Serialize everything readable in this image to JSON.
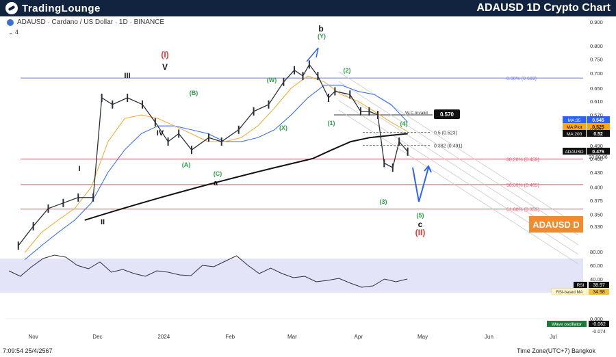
{
  "header": {
    "brand": "TradingLounge",
    "title": "ADAUSD 1D Crypto Chart"
  },
  "symbol": {
    "description": "ADAUSD · Cardano / US Dollar · 1D · BINANCE",
    "indicators_toggle": "⌄ 4"
  },
  "footer": {
    "timestamp": "7:09:54 25/4/2567",
    "timezone": "Time Zone(UTC+7) Bangkok"
  },
  "watermark": "ADAUSD D",
  "colors": {
    "banner": "#12233f",
    "price_line": "#2a2e39",
    "ma35": "#2962ff",
    "ma_plot": "#f5a623",
    "ma200": "#111111",
    "fib": "#e05a6d",
    "top_line": "#6f7fc7",
    "rsi": "#2a2e39",
    "rsi_ma": "#f0c040",
    "wave_up": "#26a69a",
    "wave_down": "#ef5350",
    "arrow": "#2962ff",
    "red_label": "#e53935",
    "green_label": "#2e9e48",
    "watermark": "#f28a2e"
  },
  "chart_data": {
    "type": "line",
    "title": "ADAUSD · Cardano / US Dollar · 1D · BINANCE",
    "x_tick_labels": [
      "Nov",
      "Dec",
      "2024",
      "Feb",
      "Mar",
      "Apr",
      "May",
      "Jun",
      "Jul"
    ],
    "y_tick_labels": [
      "0.900",
      "0.800",
      "0.750",
      "0.700",
      "0.650",
      "0.610",
      "0.570",
      "0.530",
      "0.490",
      "0.460",
      "0.430",
      "0.400",
      "0.375",
      "0.350",
      "0.330"
    ],
    "ylim": [
      0.32,
      0.9
    ],
    "log_scale": true,
    "price_series": {
      "name": "ADAUSD",
      "x": [
        "2023-10-25",
        "2023-11-01",
        "2023-11-08",
        "2023-11-15",
        "2023-11-22",
        "2023-11-29",
        "2023-12-03",
        "2023-12-08",
        "2023-12-15",
        "2023-12-22",
        "2023-12-28",
        "2024-01-03",
        "2024-01-08",
        "2024-01-14",
        "2024-01-22",
        "2024-01-28",
        "2024-02-05",
        "2024-02-12",
        "2024-02-19",
        "2024-02-26",
        "2024-03-02",
        "2024-03-06",
        "2024-03-09",
        "2024-03-13",
        "2024-03-18",
        "2024-03-21",
        "2024-03-28",
        "2024-04-02",
        "2024-04-06",
        "2024-04-10",
        "2024-04-13",
        "2024-04-17",
        "2024-04-20",
        "2024-04-24"
      ],
      "close": [
        0.3,
        0.33,
        0.36,
        0.37,
        0.38,
        0.38,
        0.62,
        0.6,
        0.62,
        0.6,
        0.55,
        0.5,
        0.52,
        0.48,
        0.51,
        0.5,
        0.53,
        0.58,
        0.6,
        0.67,
        0.71,
        0.69,
        0.73,
        0.69,
        0.62,
        0.64,
        0.63,
        0.58,
        0.58,
        0.57,
        0.45,
        0.44,
        0.5,
        0.476
      ]
    },
    "moving_averages": [
      {
        "name": "MA:35",
        "value": 0.545,
        "points": [
          0.28,
          0.3,
          0.32,
          0.34,
          0.37,
          0.43,
          0.48,
          0.52,
          0.54,
          0.54,
          0.53,
          0.52,
          0.5,
          0.5,
          0.51,
          0.53,
          0.57,
          0.62,
          0.66,
          0.66,
          0.64,
          0.63,
          0.6,
          0.55
        ]
      },
      {
        "name": "MA:Plot",
        "value": 0.525,
        "points": [
          0.29,
          0.32,
          0.34,
          0.36,
          0.4,
          0.5,
          0.56,
          0.57,
          0.56,
          0.54,
          0.52,
          0.5,
          0.5,
          0.51,
          0.54,
          0.59,
          0.65,
          0.69,
          0.67,
          0.63,
          0.61,
          0.58,
          0.55,
          0.525
        ]
      },
      {
        "name": "MA:200",
        "value": 0.52,
        "points": [
          0.34,
          0.35,
          0.36,
          0.37,
          0.38,
          0.39,
          0.4,
          0.41,
          0.42,
          0.43,
          0.44,
          0.45,
          0.46,
          0.48,
          0.5,
          0.51,
          0.515,
          0.52
        ]
      }
    ],
    "price_labels": [
      {
        "name": "ADAUSD",
        "value": "0.476",
        "countdown": "23:50:06"
      },
      {
        "name": "W.C.Invalid",
        "value": "0.570"
      }
    ],
    "levels": [
      {
        "label": "0.00% (0.683)",
        "value": 0.683
      },
      {
        "label": "38.20% (0.459)",
        "value": 0.459
      },
      {
        "label": "50.00% (0.405)",
        "value": 0.405
      },
      {
        "label": "61.80% (0.359)",
        "value": 0.359
      },
      {
        "label": "0.5 (0.523)",
        "value": 0.523
      },
      {
        "label": "0.382 (0.491)",
        "value": 0.491
      }
    ],
    "wave_labels": [
      "(I)",
      "V",
      "III",
      "IV",
      "I",
      "II",
      "a",
      "b",
      "(Y)",
      "(W)",
      "(X)",
      "(B)",
      "(A)",
      "(C)",
      "(1)",
      "(2)",
      "(3)",
      "(4)",
      "(5)",
      "c",
      "(II)"
    ],
    "rsi": {
      "name": "RSI",
      "value": "38.97",
      "ma_name": "RSI-based MA",
      "ma_value": "34.98",
      "y_tick_labels": [
        "80.00",
        "60.00",
        "40.00",
        "20.00"
      ],
      "points": [
        52,
        44,
        58,
        70,
        75,
        72,
        60,
        55,
        65,
        50,
        54,
        48,
        44,
        52,
        50,
        46,
        45,
        60,
        58,
        66,
        74,
        60,
        48,
        56,
        48,
        42,
        44,
        36,
        38,
        41,
        34,
        28,
        30,
        40,
        36,
        40
      ]
    },
    "wave_oscillator": {
      "name": "Wave oscillator",
      "value": "-0.062",
      "secondary_value": "-0.074",
      "y_tick_labels": [
        "0.000"
      ]
    }
  }
}
